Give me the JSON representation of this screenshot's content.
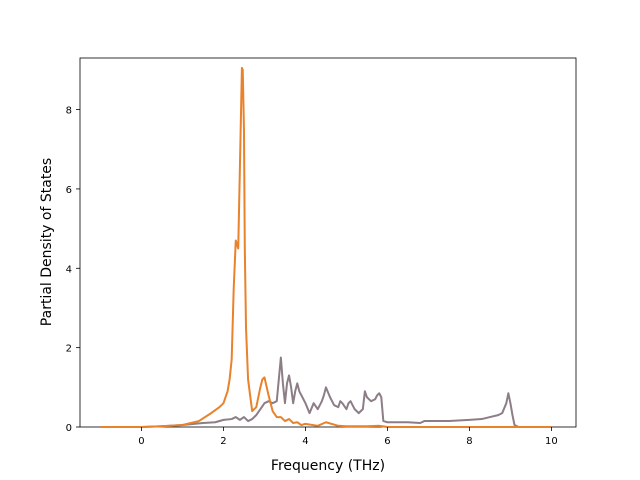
{
  "chart_data": {
    "type": "line",
    "title": "",
    "xlabel": "Frequency (THz)",
    "ylabel": "Partial Density of States",
    "xlim": [
      -1.5,
      10.6
    ],
    "ylim": [
      0,
      9.3
    ],
    "xticks": [
      0,
      2,
      4,
      6,
      8,
      10
    ],
    "yticks": [
      0,
      2,
      4,
      6,
      8
    ],
    "grid": false,
    "legend": "none",
    "series": [
      {
        "color": "#8c7d86",
        "x": [
          -1.0,
          0.0,
          0.5,
          1.0,
          1.5,
          1.8,
          2.0,
          2.2,
          2.3,
          2.4,
          2.5,
          2.6,
          2.7,
          2.8,
          2.9,
          3.0,
          3.1,
          3.2,
          3.3,
          3.35,
          3.4,
          3.45,
          3.5,
          3.55,
          3.6,
          3.65,
          3.7,
          3.75,
          3.8,
          3.85,
          3.9,
          4.0,
          4.1,
          4.2,
          4.3,
          4.4,
          4.45,
          4.5,
          4.6,
          4.7,
          4.8,
          4.85,
          4.9,
          5.0,
          5.05,
          5.1,
          5.2,
          5.3,
          5.4,
          5.45,
          5.5,
          5.6,
          5.7,
          5.75,
          5.8,
          5.85,
          5.9,
          6.0,
          6.5,
          6.8,
          6.9,
          7.0,
          7.5,
          8.0,
          8.3,
          8.5,
          8.7,
          8.8,
          8.9,
          8.95,
          9.0,
          9.05,
          9.1,
          9.2,
          10.0
        ],
        "values": [
          0.0,
          0.0,
          0.02,
          0.05,
          0.1,
          0.12,
          0.18,
          0.2,
          0.25,
          0.18,
          0.25,
          0.15,
          0.2,
          0.3,
          0.45,
          0.6,
          0.65,
          0.6,
          0.65,
          1.2,
          1.75,
          1.1,
          0.6,
          1.1,
          1.3,
          1.0,
          0.6,
          0.9,
          1.1,
          0.9,
          0.8,
          0.6,
          0.35,
          0.6,
          0.45,
          0.65,
          0.8,
          1.0,
          0.75,
          0.55,
          0.5,
          0.65,
          0.6,
          0.45,
          0.6,
          0.65,
          0.45,
          0.35,
          0.45,
          0.9,
          0.75,
          0.65,
          0.7,
          0.8,
          0.85,
          0.75,
          0.15,
          0.12,
          0.12,
          0.1,
          0.15,
          0.15,
          0.15,
          0.18,
          0.2,
          0.25,
          0.3,
          0.35,
          0.6,
          0.85,
          0.6,
          0.3,
          0.05,
          0.0,
          0.0
        ]
      },
      {
        "color": "#e8822b",
        "x": [
          -1.0,
          0.0,
          0.5,
          1.0,
          1.4,
          1.7,
          1.9,
          2.0,
          2.1,
          2.15,
          2.2,
          2.25,
          2.3,
          2.33,
          2.36,
          2.4,
          2.45,
          2.47,
          2.5,
          2.52,
          2.55,
          2.6,
          2.7,
          2.8,
          2.9,
          2.95,
          3.0,
          3.1,
          3.2,
          3.3,
          3.4,
          3.5,
          3.6,
          3.7,
          3.8,
          3.9,
          4.0,
          4.3,
          4.5,
          4.8,
          5.0,
          5.5,
          5.8,
          6.0,
          7.0,
          8.0,
          9.0,
          10.0
        ],
        "values": [
          0.0,
          0.0,
          0.02,
          0.05,
          0.15,
          0.35,
          0.5,
          0.6,
          0.9,
          1.2,
          1.7,
          3.5,
          4.7,
          4.6,
          4.5,
          6.5,
          9.05,
          9.0,
          7.5,
          4.5,
          2.5,
          1.2,
          0.4,
          0.5,
          1.0,
          1.2,
          1.25,
          0.8,
          0.4,
          0.25,
          0.25,
          0.15,
          0.2,
          0.1,
          0.12,
          0.05,
          0.08,
          0.03,
          0.12,
          0.03,
          0.02,
          0.02,
          0.03,
          0.0,
          0.0,
          0.0,
          0.0,
          0.0
        ]
      }
    ]
  }
}
